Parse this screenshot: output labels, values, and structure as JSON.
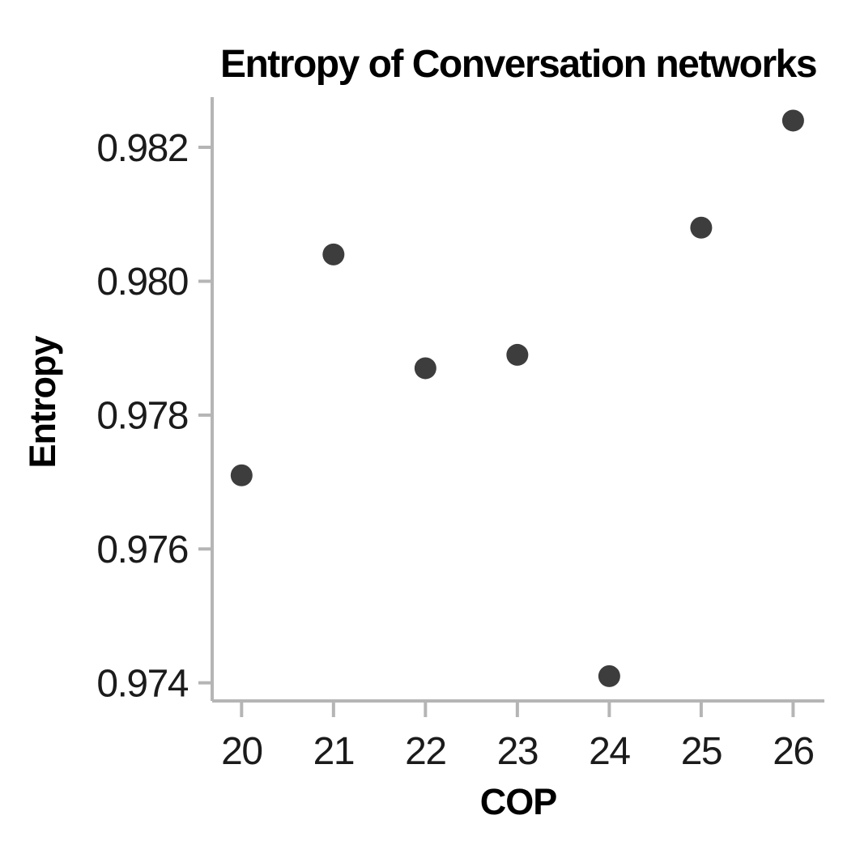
{
  "chart_data": {
    "type": "scatter",
    "title": "Entropy of Conversation networks",
    "xlabel": "COP",
    "ylabel": "Entropy",
    "x": [
      20,
      21,
      22,
      23,
      24,
      25,
      26
    ],
    "y": [
      0.9771,
      0.9804,
      0.9787,
      0.9789,
      0.9741,
      0.9808,
      0.9824
    ],
    "series": [
      {
        "name": "Entropy of Conversation networks",
        "points": [
          {
            "x": 20,
            "y": 0.9771
          },
          {
            "x": 21,
            "y": 0.9804
          },
          {
            "x": 22,
            "y": 0.9787
          },
          {
            "x": 23,
            "y": 0.9789
          },
          {
            "x": 24,
            "y": 0.9741
          },
          {
            "x": 25,
            "y": 0.9808
          },
          {
            "x": 26,
            "y": 0.9824
          }
        ]
      }
    ],
    "xticks": [
      20,
      21,
      22,
      23,
      24,
      25,
      26
    ],
    "xtick_labels": [
      "20",
      "21",
      "22",
      "23",
      "24",
      "25",
      "26"
    ],
    "yticks": [
      0.974,
      0.976,
      0.978,
      0.98,
      0.982
    ],
    "ytick_labels": [
      "0.974",
      "0.976",
      "0.978",
      "0.980",
      "0.982"
    ],
    "xlim": [
      19.68,
      26.34
    ],
    "ylim": [
      0.97373,
      0.98275
    ],
    "grid": false,
    "legend_position": "none",
    "point_color": "#3d3d3d",
    "point_radius": 13.5,
    "axis_color": "#b5b5b5",
    "tick_label_color": "#1b1b1b",
    "text_color": "#000000",
    "background": "#ffffff"
  }
}
